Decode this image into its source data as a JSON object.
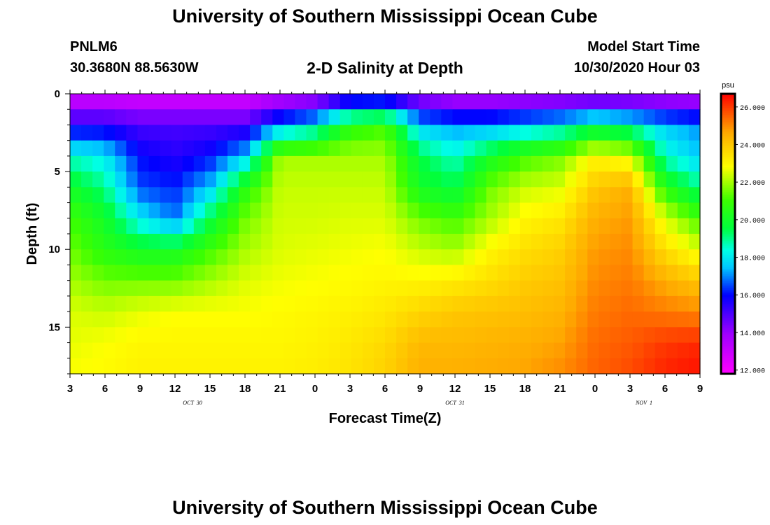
{
  "header": {
    "title": "University of Southern Mississippi Ocean Cube",
    "station": "PNLM6",
    "coords": "30.3680N 88.5630W",
    "plot_title": "2-D Salinity at Depth",
    "model_label": "Model Start Time",
    "model_time": "10/30/2020 Hour 03"
  },
  "footer": {
    "title": "University of Southern Mississippi Ocean Cube"
  },
  "chart_data": {
    "type": "heatmap",
    "title": "2-D Salinity at Depth",
    "xlabel": "Forecast Time(Z)",
    "ylabel": "Depth (ft)",
    "x_range": [
      0,
      54
    ],
    "x_units": "hours since 10/30/2020 03Z",
    "x_ticks": [
      "3",
      "6",
      "9",
      "12",
      "15",
      "18",
      "21",
      "0",
      "3",
      "6",
      "9",
      "12",
      "15",
      "18",
      "21",
      "0",
      "3",
      "6",
      "9"
    ],
    "date_labels": [
      {
        "text": "OCT 30",
        "hour": 10.5
      },
      {
        "text": "OCT 31",
        "hour": 33
      },
      {
        "text": "NOV 1",
        "hour": 55.5
      }
    ],
    "ylim": [
      0,
      18
    ],
    "y_ticks": [
      "0",
      "5",
      "10",
      "15"
    ],
    "colorbar": {
      "units": "psu",
      "min": 11.8,
      "max": 26.7,
      "labels": [
        "26.000",
        "24.000",
        "22.000",
        "20.000",
        "18.000",
        "16.000",
        "14.000",
        "12.000"
      ],
      "values": [
        26,
        24,
        22,
        20,
        18,
        16,
        14,
        12
      ]
    },
    "profile_hours": [
      0,
      3,
      6,
      9,
      12,
      15,
      18,
      21,
      24,
      27,
      30,
      33,
      36,
      39,
      42,
      45,
      48,
      51,
      54
    ],
    "profile_depths_ft": [
      0,
      2,
      4,
      6,
      8,
      10,
      12,
      14,
      16,
      18
    ],
    "salinity_profiles": [
      [
        12.6,
        15.5,
        18.5,
        20.0,
        21.0,
        21.5,
        22.0,
        22.5,
        22.6,
        22.8
      ],
      [
        12.6,
        15.5,
        18.0,
        19.0,
        20.0,
        20.5,
        21.5,
        22.3,
        22.8,
        22.9
      ],
      [
        12.5,
        15.0,
        16.0,
        16.5,
        18.0,
        20.0,
        21.5,
        22.6,
        23.0,
        23.1
      ],
      [
        12.5,
        15.0,
        15.5,
        16.2,
        16.8,
        20.0,
        21.5,
        22.8,
        23.0,
        23.1
      ],
      [
        12.5,
        15.0,
        16.0,
        17.5,
        19.5,
        21.0,
        22.0,
        22.8,
        23.0,
        23.1
      ],
      [
        12.5,
        15.0,
        17.5,
        20.5,
        21.5,
        22.0,
        22.5,
        22.8,
        23.0,
        23.1
      ],
      [
        12.8,
        17.0,
        22.0,
        22.3,
        22.4,
        22.5,
        22.7,
        22.9,
        23.0,
        23.1
      ],
      [
        13.0,
        18.0,
        22.0,
        22.3,
        22.4,
        22.6,
        22.8,
        23.0,
        23.1,
        23.2
      ],
      [
        14.5,
        20.5,
        22.0,
        22.3,
        22.5,
        22.7,
        22.9,
        23.1,
        23.3,
        23.4
      ],
      [
        14.5,
        21.0,
        22.0,
        22.3,
        22.5,
        22.8,
        23.0,
        23.3,
        23.6,
        23.8
      ],
      [
        13.5,
        17.5,
        19.5,
        20.0,
        21.5,
        22.3,
        23.0,
        23.7,
        24.3,
        24.5
      ],
      [
        13.0,
        17.0,
        18.5,
        19.5,
        21.0,
        22.0,
        23.2,
        24.0,
        24.3,
        24.5
      ],
      [
        13.0,
        17.0,
        20.0,
        21.5,
        22.0,
        23.0,
        23.5,
        24.1,
        24.4,
        24.6
      ],
      [
        13.0,
        17.5,
        21.0,
        22.3,
        23.0,
        23.5,
        23.9,
        24.2,
        24.5,
        24.7
      ],
      [
        13.0,
        18.0,
        21.5,
        22.5,
        23.3,
        23.8,
        24.1,
        24.4,
        24.7,
        25.0
      ],
      [
        13.0,
        19.0,
        23.0,
        24.0,
        24.5,
        24.8,
        25.0,
        25.2,
        25.4,
        25.5
      ],
      [
        13.0,
        18.5,
        22.5,
        24.5,
        24.8,
        25.0,
        25.2,
        25.4,
        25.6,
        25.8
      ],
      [
        13.0,
        17.5,
        18.5,
        20.5,
        22.5,
        23.5,
        24.5,
        25.2,
        26.0,
        26.3
      ],
      [
        13.0,
        17.0,
        17.5,
        19.0,
        21.0,
        22.5,
        24.0,
        25.0,
        26.2,
        26.5
      ]
    ]
  }
}
